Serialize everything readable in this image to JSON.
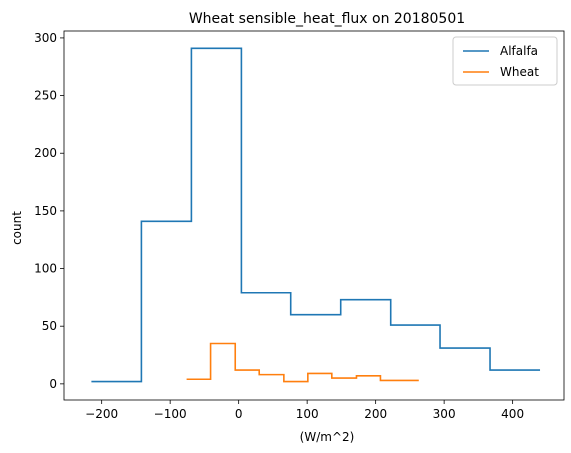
{
  "chart_data": {
    "type": "step-histogram",
    "title": "Wheat sensible_heat_flux on 20180501",
    "xlabel": "(W/m^2)",
    "ylabel": "count",
    "xlim": [
      -255,
      475
    ],
    "ylim": [
      -14,
      306
    ],
    "xticks": [
      -200,
      -100,
      0,
      100,
      200,
      300,
      400
    ],
    "yticks": [
      0,
      50,
      100,
      150,
      200,
      250,
      300
    ],
    "xtick_labels": [
      "−200",
      "−100",
      "0",
      "100",
      "200",
      "300",
      "400"
    ],
    "ytick_labels": [
      "0",
      "50",
      "100",
      "150",
      "200",
      "250",
      "300"
    ],
    "legend": {
      "placement": "upper-right"
    },
    "grid": false,
    "series": [
      {
        "name": "Alfalfa",
        "color": "#1f77b4",
        "edges": [
          -215,
          -142,
          -69,
          4,
          76,
          149,
          222,
          294,
          367,
          440
        ],
        "counts": [
          2,
          141,
          291,
          79,
          60,
          73,
          51,
          31,
          12
        ]
      },
      {
        "name": "Wheat",
        "color": "#ff7f0e",
        "edges": [
          -76,
          -41,
          -5,
          30,
          66,
          101,
          136,
          172,
          207,
          242,
          263
        ],
        "counts": [
          4,
          35,
          12,
          8,
          2,
          9,
          5,
          7,
          3,
          3
        ]
      }
    ]
  }
}
